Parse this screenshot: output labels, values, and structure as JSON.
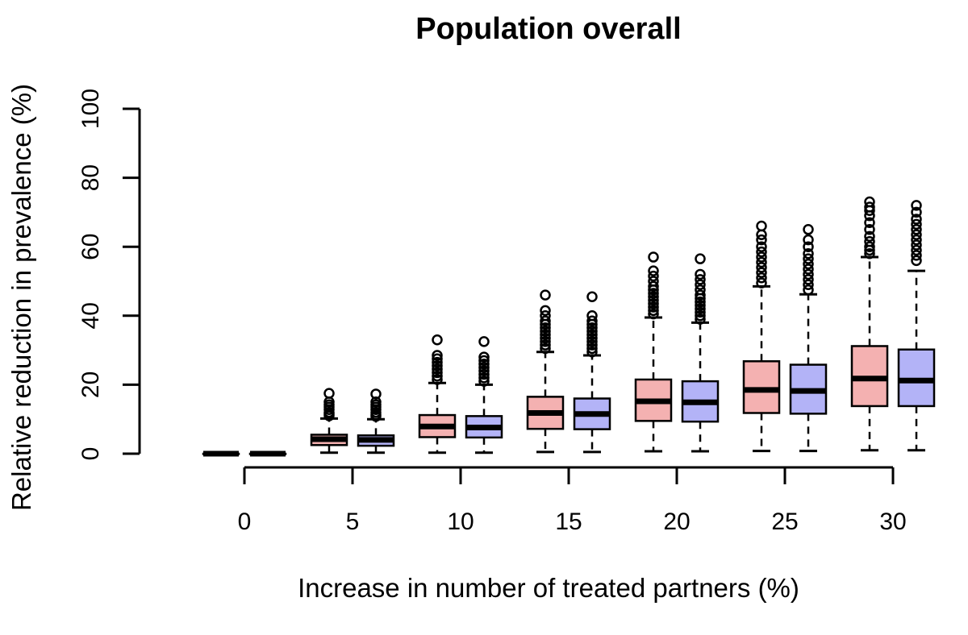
{
  "chart_data": {
    "type": "boxplot",
    "title": "Population overall",
    "xlabel": "Increase in number of treated partners (%)",
    "ylabel": "Relative reduction in prevalence (%)",
    "ylim": [
      0,
      100
    ],
    "yticks": [
      0,
      20,
      40,
      60,
      80,
      100
    ],
    "categories": [
      "0",
      "5",
      "10",
      "15",
      "20",
      "25",
      "30"
    ],
    "series": [
      {
        "color": "#f4b1b1",
        "boxes": [
          {
            "whislo": 0,
            "q1": 0,
            "med": 0,
            "q3": 0,
            "whishi": 0,
            "fliers": []
          },
          {
            "whislo": 0.3,
            "q1": 2.5,
            "med": 4.2,
            "q3": 5.5,
            "whishi": 10.2,
            "fliers": [
              11,
              11.5,
              12,
              12.8,
              13.5,
              14.2,
              15,
              17.5
            ]
          },
          {
            "whislo": 0.3,
            "q1": 4.8,
            "med": 7.9,
            "q3": 11.2,
            "whishi": 20.5,
            "fliers": [
              21.5,
              22.5,
              23.5,
              24.5,
              25.5,
              26.5,
              27.5,
              28.5,
              33
            ]
          },
          {
            "whislo": 0.5,
            "q1": 7.2,
            "med": 11.8,
            "q3": 16.5,
            "whishi": 29.5,
            "fliers": [
              30.5,
              31.5,
              32.5,
              33.5,
              34.5,
              35.5,
              36.5,
              37.5,
              38.5,
              40,
              41.5,
              46
            ]
          },
          {
            "whislo": 0.7,
            "q1": 9.5,
            "med": 15.2,
            "q3": 21.5,
            "whishi": 39.5,
            "fliers": [
              40.5,
              41.5,
              42.5,
              43.5,
              44.5,
              45.5,
              46.5,
              47.5,
              48.5,
              50,
              51.5,
              53,
              57
            ]
          },
          {
            "whislo": 0.8,
            "q1": 11.8,
            "med": 18.5,
            "q3": 26.8,
            "whishi": 48.5,
            "fliers": [
              49.5,
              51,
              52.5,
              54,
              55.5,
              57,
              58.5,
              60,
              62,
              63.5,
              66
            ]
          },
          {
            "whislo": 1,
            "q1": 13.8,
            "med": 21.8,
            "q3": 31.2,
            "whishi": 57,
            "fliers": [
              58,
              59,
              60,
              61.5,
              63,
              65,
              67,
              69,
              70.5,
              71.5,
              73
            ]
          }
        ]
      },
      {
        "color": "#b3b3f7",
        "boxes": [
          {
            "whislo": 0,
            "q1": 0,
            "med": 0,
            "q3": 0,
            "whishi": 0,
            "fliers": []
          },
          {
            "whislo": 0.3,
            "q1": 2.3,
            "med": 4.0,
            "q3": 5.3,
            "whishi": 10.0,
            "fliers": [
              10.8,
              11.3,
              12,
              12.8,
              13.5,
              14.2,
              15,
              17.3
            ]
          },
          {
            "whislo": 0.3,
            "q1": 4.7,
            "med": 7.6,
            "q3": 10.9,
            "whishi": 20.0,
            "fliers": [
              21,
              22,
              23,
              24,
              25,
              26,
              27,
              28,
              32.5
            ]
          },
          {
            "whislo": 0.5,
            "q1": 7.1,
            "med": 11.5,
            "q3": 16.0,
            "whishi": 28.5,
            "fliers": [
              29.5,
              30.5,
              31.5,
              32.5,
              33.5,
              34.5,
              35.5,
              36.5,
              37.5,
              38.5,
              40,
              45.5
            ]
          },
          {
            "whislo": 0.7,
            "q1": 9.3,
            "med": 14.9,
            "q3": 21.0,
            "whishi": 38.0,
            "fliers": [
              39,
              40,
              41,
              42,
              43,
              44,
              45,
              46,
              47.5,
              49,
              50.5,
              52,
              56.5
            ]
          },
          {
            "whislo": 0.8,
            "q1": 11.6,
            "med": 18.2,
            "q3": 25.8,
            "whishi": 46.2,
            "fliers": [
              47.5,
              49,
              50.5,
              52,
              53.5,
              55,
              56.5,
              58,
              60,
              62,
              65
            ]
          },
          {
            "whislo": 1,
            "q1": 13.8,
            "med": 21.2,
            "q3": 30.2,
            "whishi": 53,
            "fliers": [
              56,
              57.5,
              59,
              60.5,
              62,
              63.5,
              65,
              66.5,
              68,
              70,
              72
            ]
          }
        ]
      }
    ]
  }
}
